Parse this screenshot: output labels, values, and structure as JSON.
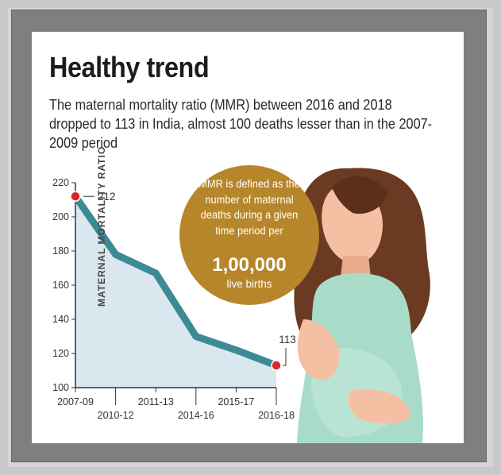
{
  "header": {
    "title": "Healthy trend",
    "subtitle": "The maternal mortality ratio (MMR) between 2016 and 2018 dropped to 113 in India, almost 100 deaths lesser than in the 2007-2009 period"
  },
  "note": {
    "text": "MMR is defined as the number of maternal deaths during a given time period per",
    "number": "1,00,000",
    "tail": "live births"
  },
  "chart_data": {
    "type": "line",
    "title": "Healthy trend",
    "ylabel": "MATERNAL MORTALITY RATIO",
    "categories": [
      "2007-09",
      "2010-12",
      "2011-13",
      "2014-16",
      "2015-17",
      "2016-18"
    ],
    "values": [
      212,
      178,
      167,
      130,
      122,
      113
    ],
    "ylim": [
      100,
      220
    ],
    "yticks": [
      100,
      120,
      140,
      160,
      180,
      200,
      220
    ],
    "annotations": [
      {
        "category": "2007-09",
        "label": "212"
      },
      {
        "category": "2016-18",
        "label": "113"
      }
    ],
    "grid": false,
    "legend": "none",
    "colors": {
      "line": "#3c8a94",
      "area": "#dbe7ef",
      "marker": "#d9262c"
    }
  },
  "colors": {
    "note_fill": "#b8862a",
    "dress": "#a8dcc9",
    "skin": "#f5bfa3",
    "hair": "#6b3a22"
  }
}
